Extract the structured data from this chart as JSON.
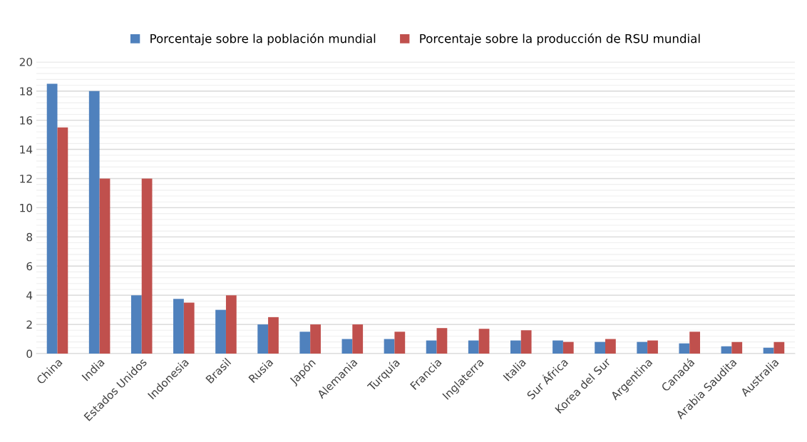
{
  "chart_data": {
    "type": "bar",
    "categories": [
      "China",
      "India",
      "Estados Unidos",
      "Indonesia",
      "Brasil",
      "Rusia",
      "Japón",
      "Alemania",
      "Turquía",
      "Francia",
      "Inglaterra",
      "Italia",
      "Sur África",
      "Korea del Sur",
      "Argentina",
      "Canadá",
      "Arabia Saudita",
      "Australia"
    ],
    "series": [
      {
        "name": "Porcentaje sobre la población mundial",
        "color": "#4f81bd",
        "values": [
          18.5,
          18,
          4,
          3.75,
          3,
          2,
          1.5,
          1,
          1,
          0.9,
          0.9,
          0.9,
          0.9,
          0.8,
          0.8,
          0.7,
          0.5,
          0.4
        ]
      },
      {
        "name": "Porcentaje sobre la producción de RSU mundial",
        "color": "#c0504d",
        "values": [
          15.5,
          12,
          12,
          3.5,
          4,
          2.5,
          2,
          2,
          1.5,
          1.75,
          1.7,
          1.6,
          0.8,
          1.0,
          0.9,
          1.5,
          0.8,
          0.8
        ]
      }
    ],
    "ylim": [
      0,
      20
    ],
    "yticks": [
      0,
      2,
      4,
      6,
      8,
      10,
      12,
      14,
      16,
      18,
      20
    ],
    "grid": "y",
    "legend": "top"
  }
}
